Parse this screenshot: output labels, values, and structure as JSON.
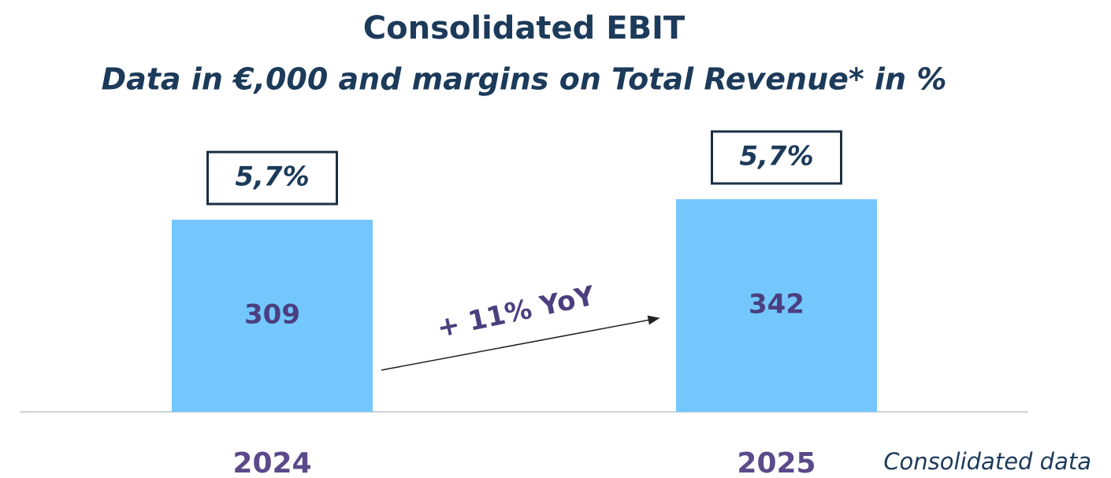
{
  "chart_data": {
    "type": "bar",
    "title": "Consolidated EBIT",
    "subtitle": "Data in €,000 and margins on Total Revenue* in %",
    "categories": [
      "2024",
      "2025"
    ],
    "values": [
      309,
      342
    ],
    "color": "#73c7fd",
    "margins": [
      "5,7%",
      "5,7%"
    ],
    "annotation": "+ 11% YoY",
    "footnote": "Consolidated data"
  }
}
